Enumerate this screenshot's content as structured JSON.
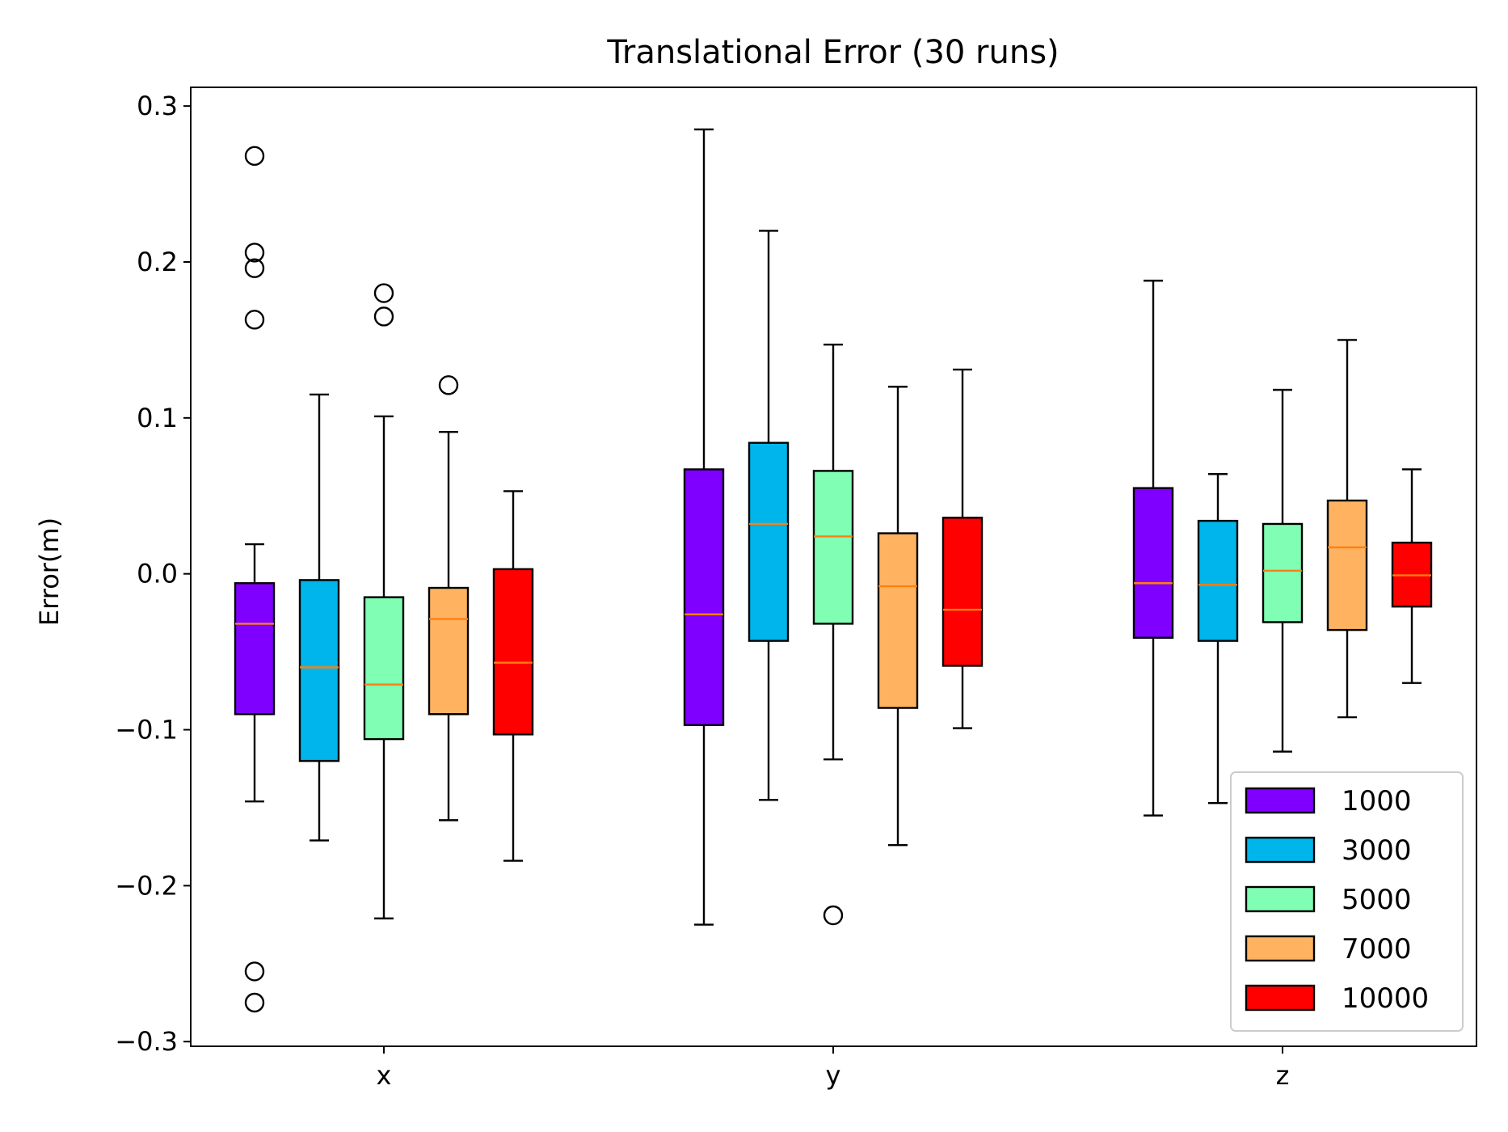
{
  "chart_data": {
    "type": "boxplot",
    "title": "Translational Error (30 runs)",
    "xlabel": "",
    "ylabel": "Error(m)",
    "ylim": [
      -0.303,
      0.312
    ],
    "yticks": [
      -0.3,
      -0.2,
      -0.1,
      0.0,
      0.1,
      0.2,
      0.3
    ],
    "ytick_labels": [
      "−0.3",
      "−0.2",
      "−0.1",
      "0.0",
      "0.1",
      "0.2",
      "0.3"
    ],
    "categories": [
      "x",
      "y",
      "z"
    ],
    "grid": false,
    "legend_position": "lower right",
    "median_color": "#ff7f0e",
    "series": [
      {
        "name": "1000",
        "color": "#8000ff",
        "boxes": [
          {
            "whislo": -0.146,
            "q1": -0.09,
            "med": -0.032,
            "q3": -0.006,
            "whishi": 0.019,
            "fliers": [
              0.268,
              0.206,
              0.196,
              0.163,
              -0.255,
              -0.275
            ]
          },
          {
            "whislo": -0.225,
            "q1": -0.097,
            "med": -0.026,
            "q3": 0.067,
            "whishi": 0.285,
            "fliers": []
          },
          {
            "whislo": -0.155,
            "q1": -0.041,
            "med": -0.006,
            "q3": 0.055,
            "whishi": 0.188,
            "fliers": []
          }
        ]
      },
      {
        "name": "3000",
        "color": "#00b5eb",
        "boxes": [
          {
            "whislo": -0.171,
            "q1": -0.12,
            "med": -0.06,
            "q3": -0.004,
            "whishi": 0.115,
            "fliers": []
          },
          {
            "whislo": -0.145,
            "q1": -0.043,
            "med": 0.032,
            "q3": 0.084,
            "whishi": 0.22,
            "fliers": []
          },
          {
            "whislo": -0.147,
            "q1": -0.043,
            "med": -0.007,
            "q3": 0.034,
            "whishi": 0.064,
            "fliers": []
          }
        ]
      },
      {
        "name": "5000",
        "color": "#80ffb4",
        "boxes": [
          {
            "whislo": -0.221,
            "q1": -0.106,
            "med": -0.071,
            "q3": -0.015,
            "whishi": 0.101,
            "fliers": [
              0.18,
              0.165
            ]
          },
          {
            "whislo": -0.119,
            "q1": -0.032,
            "med": 0.024,
            "q3": 0.066,
            "whishi": 0.147,
            "fliers": [
              -0.219
            ]
          },
          {
            "whislo": -0.114,
            "q1": -0.031,
            "med": 0.002,
            "q3": 0.032,
            "whishi": 0.118,
            "fliers": []
          }
        ]
      },
      {
        "name": "7000",
        "color": "#ffb360",
        "boxes": [
          {
            "whislo": -0.158,
            "q1": -0.09,
            "med": -0.029,
            "q3": -0.009,
            "whishi": 0.091,
            "fliers": [
              0.121
            ]
          },
          {
            "whislo": -0.174,
            "q1": -0.086,
            "med": -0.008,
            "q3": 0.026,
            "whishi": 0.12,
            "fliers": []
          },
          {
            "whislo": -0.092,
            "q1": -0.036,
            "med": 0.017,
            "q3": 0.047,
            "whishi": 0.15,
            "fliers": []
          }
        ]
      },
      {
        "name": "10000",
        "color": "#ff0000",
        "boxes": [
          {
            "whislo": -0.184,
            "q1": -0.103,
            "med": -0.057,
            "q3": 0.003,
            "whishi": 0.053,
            "fliers": []
          },
          {
            "whislo": -0.099,
            "q1": -0.059,
            "med": -0.023,
            "q3": 0.036,
            "whishi": 0.131,
            "fliers": []
          },
          {
            "whislo": -0.07,
            "q1": -0.021,
            "med": -0.001,
            "q3": 0.02,
            "whishi": 0.067,
            "fliers": []
          }
        ]
      }
    ]
  }
}
